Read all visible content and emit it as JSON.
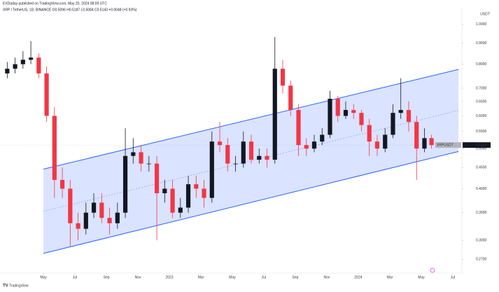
{
  "chart_data": {
    "type": "candlestick",
    "publisher": "EXDaday published on TradingView.com, May 20, 2024 08:09 UTC",
    "title": "XRP / TetherUS, 1D, BINANCE  O0.5096 H0.5187 L0.5084 C0.5143 +0.0048 (+0.93%)",
    "y_axis_unit": "USDT",
    "symbol_label": "XRPUSDT",
    "last_price_label": "0.5143",
    "brand": "TradingView",
    "x": [
      1.7,
      2.2,
      2.7,
      3.2,
      3.7,
      4.2,
      4.7,
      5.2,
      5.7,
      6.2,
      6.7,
      7.2,
      7.7,
      8.2,
      8.7,
      9.2,
      9.7,
      10.2,
      10.7,
      11.2,
      11.7,
      12.2,
      12.7,
      13.2,
      13.7,
      14.2,
      14.7,
      15.2,
      15.7,
      16.2,
      16.7,
      17.2,
      17.7,
      18.2,
      18.7,
      19.2,
      19.7,
      20.2,
      20.7,
      21.2,
      21.7,
      22.2,
      22.7,
      23.2,
      23.7,
      24.2,
      24.7,
      25.2,
      25.7,
      26.2,
      26.7,
      27.2,
      27.7,
      28.2,
      28.65
    ],
    "open": [
      0.76,
      0.78,
      0.8,
      0.82,
      0.83,
      0.76,
      0.6,
      0.42,
      0.4,
      0.33,
      0.32,
      0.35,
      0.37,
      0.34,
      0.33,
      0.35,
      0.48,
      0.49,
      0.46,
      0.46,
      0.39,
      0.4,
      0.35,
      0.36,
      0.41,
      0.4,
      0.38,
      0.52,
      0.51,
      0.46,
      0.46,
      0.52,
      0.47,
      0.48,
      0.47,
      0.78,
      0.71,
      0.62,
      0.51,
      0.5,
      0.52,
      0.54,
      0.66,
      0.6,
      0.62,
      0.61,
      0.57,
      0.52,
      0.5,
      0.54,
      0.61,
      0.62,
      0.58,
      0.5,
      0.53
    ],
    "high": [
      0.81,
      0.83,
      0.86,
      0.91,
      0.85,
      0.79,
      0.63,
      0.45,
      0.42,
      0.35,
      0.37,
      0.39,
      0.39,
      0.36,
      0.37,
      0.56,
      0.53,
      0.51,
      0.48,
      0.48,
      0.42,
      0.42,
      0.38,
      0.43,
      0.43,
      0.42,
      0.55,
      0.58,
      0.53,
      0.48,
      0.55,
      0.54,
      0.5,
      0.5,
      0.93,
      0.82,
      0.73,
      0.64,
      0.53,
      0.54,
      0.56,
      0.69,
      0.67,
      0.65,
      0.64,
      0.62,
      0.59,
      0.54,
      0.56,
      0.64,
      0.74,
      0.65,
      0.6,
      0.56,
      0.54
    ],
    "low": [
      0.74,
      0.76,
      0.78,
      0.8,
      0.74,
      0.58,
      0.38,
      0.38,
      0.29,
      0.3,
      0.31,
      0.34,
      0.33,
      0.31,
      0.32,
      0.34,
      0.46,
      0.44,
      0.44,
      0.3,
      0.37,
      0.34,
      0.34,
      0.35,
      0.38,
      0.36,
      0.37,
      0.49,
      0.44,
      0.44,
      0.45,
      0.46,
      0.46,
      0.45,
      0.46,
      0.68,
      0.6,
      0.48,
      0.48,
      0.49,
      0.51,
      0.53,
      0.58,
      0.59,
      0.59,
      0.55,
      0.48,
      0.48,
      0.49,
      0.53,
      0.59,
      0.55,
      0.42,
      0.49,
      0.5
    ],
    "close": [
      0.78,
      0.8,
      0.82,
      0.83,
      0.76,
      0.6,
      0.42,
      0.4,
      0.33,
      0.32,
      0.35,
      0.37,
      0.34,
      0.33,
      0.35,
      0.48,
      0.49,
      0.46,
      0.46,
      0.39,
      0.4,
      0.35,
      0.36,
      0.41,
      0.4,
      0.38,
      0.52,
      0.51,
      0.46,
      0.46,
      0.52,
      0.47,
      0.48,
      0.47,
      0.78,
      0.71,
      0.62,
      0.51,
      0.5,
      0.52,
      0.54,
      0.66,
      0.6,
      0.62,
      0.61,
      0.57,
      0.52,
      0.5,
      0.54,
      0.61,
      0.62,
      0.58,
      0.5,
      0.53,
      0.51
    ],
    "up_color": "#131722",
    "down_color": "#f23645",
    "channel": {
      "x": [
        4,
        30.36
      ],
      "upper": [
        0.446,
        0.777
      ],
      "lower": [
        0.279,
        0.492
      ],
      "fill": "#cdd9ff",
      "line_color": "#2962ff"
    },
    "log_scale": true,
    "grid": false,
    "xlim": [
      1.24,
      30.58
    ],
    "xticks": [
      {
        "value": 4,
        "label": "May"
      },
      {
        "value": 6,
        "label": "Jul"
      },
      {
        "value": 8,
        "label": "Sep"
      },
      {
        "value": 10,
        "label": "Nov"
      },
      {
        "value": 12,
        "label": "2023"
      },
      {
        "value": 14,
        "label": "Mar"
      },
      {
        "value": 16,
        "label": "May"
      },
      {
        "value": 18,
        "label": "Jul"
      },
      {
        "value": 20,
        "label": "Sep"
      },
      {
        "value": 22,
        "label": "Nov"
      },
      {
        "value": 24,
        "label": "2024"
      },
      {
        "value": 26,
        "label": "Mar"
      },
      {
        "value": 28,
        "label": "May"
      },
      {
        "value": 30,
        "label": "Jul"
      }
    ],
    "ylim": [
      0.25,
      1.1
    ],
    "yticks": [
      {
        "value": 1.0,
        "label": "1.0000"
      },
      {
        "value": 0.9,
        "label": "0.9000"
      },
      {
        "value": 0.8,
        "label": "0.8000"
      },
      {
        "value": 0.7,
        "label": "0.7000"
      },
      {
        "value": 0.65,
        "label": "0.6500"
      },
      {
        "value": 0.6,
        "label": "0.6000"
      },
      {
        "value": 0.55,
        "label": "0.5500"
      },
      {
        "value": 0.5,
        "label": "0.5000"
      },
      {
        "value": 0.45,
        "label": "0.4500"
      },
      {
        "value": 0.4,
        "label": "0.4000"
      },
      {
        "value": 0.35,
        "label": "0.3500"
      },
      {
        "value": 0.3,
        "label": "0.3000"
      },
      {
        "value": 0.27,
        "label": "0.2700"
      }
    ]
  }
}
